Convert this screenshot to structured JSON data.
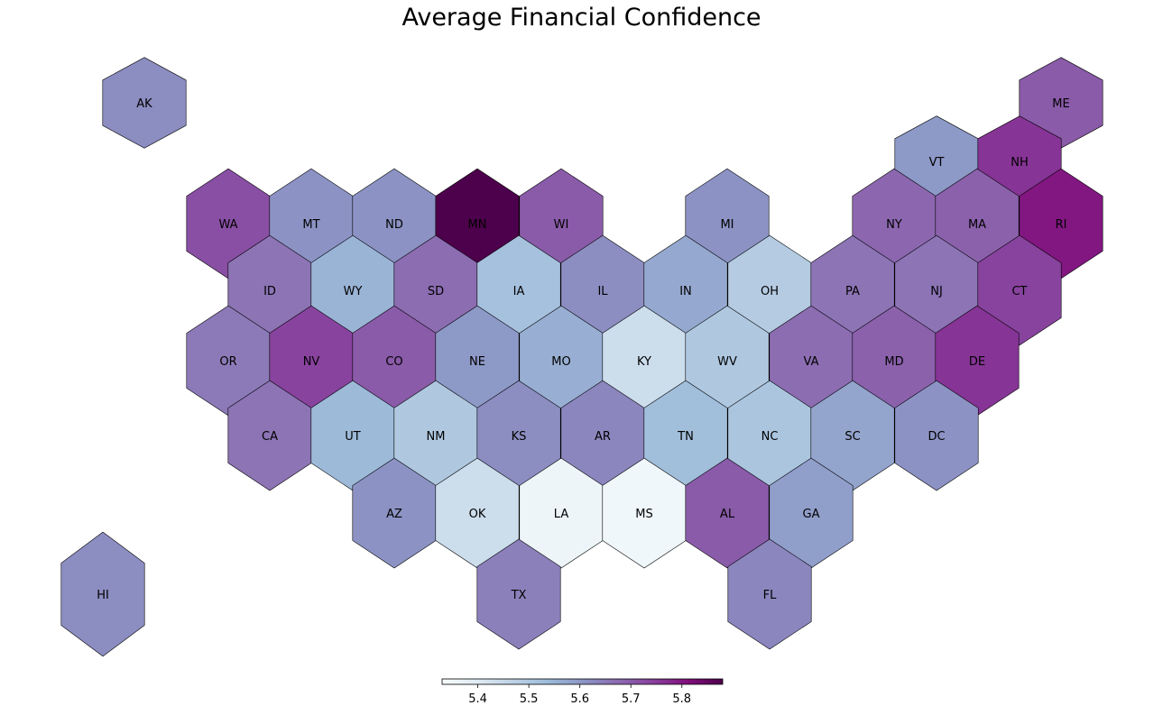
{
  "title": "Average Financial Confidence",
  "colorbar": {
    "min": 5.33,
    "max": 5.88,
    "ticks": [
      "5.4",
      "5.5",
      "5.6",
      "5.7",
      "5.8"
    ],
    "colormap": [
      "#f7fcfd",
      "#e0ecf4",
      "#bfd3e6",
      "#9ebcda",
      "#8c96c6",
      "#8c6bb1",
      "#88419d",
      "#810f7c",
      "#4d004b"
    ]
  },
  "states": [
    {
      "abbr": "AK",
      "value": 5.62
    },
    {
      "abbr": "ME",
      "value": 5.7
    },
    {
      "abbr": "VT",
      "value": 5.6
    },
    {
      "abbr": "NH",
      "value": 5.76
    },
    {
      "abbr": "WA",
      "value": 5.72
    },
    {
      "abbr": "MT",
      "value": 5.61
    },
    {
      "abbr": "ND",
      "value": 5.61
    },
    {
      "abbr": "MN",
      "value": 5.88
    },
    {
      "abbr": "WI",
      "value": 5.7
    },
    {
      "abbr": "MI",
      "value": 5.61
    },
    {
      "abbr": "NY",
      "value": 5.68
    },
    {
      "abbr": "MA",
      "value": 5.69
    },
    {
      "abbr": "RI",
      "value": 5.8
    },
    {
      "abbr": "ID",
      "value": 5.66
    },
    {
      "abbr": "WY",
      "value": 5.55
    },
    {
      "abbr": "SD",
      "value": 5.67
    },
    {
      "abbr": "IA",
      "value": 5.52
    },
    {
      "abbr": "IL",
      "value": 5.62
    },
    {
      "abbr": "IN",
      "value": 5.57
    },
    {
      "abbr": "OH",
      "value": 5.49
    },
    {
      "abbr": "PA",
      "value": 5.66
    },
    {
      "abbr": "NJ",
      "value": 5.66
    },
    {
      "abbr": "CT",
      "value": 5.74
    },
    {
      "abbr": "OR",
      "value": 5.65
    },
    {
      "abbr": "NV",
      "value": 5.74
    },
    {
      "abbr": "CO",
      "value": 5.7
    },
    {
      "abbr": "NE",
      "value": 5.6
    },
    {
      "abbr": "MO",
      "value": 5.56
    },
    {
      "abbr": "KY",
      "value": 5.44
    },
    {
      "abbr": "WV",
      "value": 5.5
    },
    {
      "abbr": "VA",
      "value": 5.67
    },
    {
      "abbr": "MD",
      "value": 5.69
    },
    {
      "abbr": "DE",
      "value": 5.76
    },
    {
      "abbr": "CA",
      "value": 5.66
    },
    {
      "abbr": "UT",
      "value": 5.54
    },
    {
      "abbr": "NM",
      "value": 5.5
    },
    {
      "abbr": "KS",
      "value": 5.62
    },
    {
      "abbr": "AR",
      "value": 5.63
    },
    {
      "abbr": "TN",
      "value": 5.53
    },
    {
      "abbr": "NC",
      "value": 5.51
    },
    {
      "abbr": "SC",
      "value": 5.58
    },
    {
      "abbr": "DC",
      "value": 5.61
    },
    {
      "abbr": "AZ",
      "value": 5.61
    },
    {
      "abbr": "OK",
      "value": 5.44
    },
    {
      "abbr": "LA",
      "value": 5.36
    },
    {
      "abbr": "MS",
      "value": 5.35
    },
    {
      "abbr": "AL",
      "value": 5.7
    },
    {
      "abbr": "GA",
      "value": 5.59
    },
    {
      "abbr": "HI",
      "value": 5.62
    },
    {
      "abbr": "TX",
      "value": 5.64
    },
    {
      "abbr": "FL",
      "value": 5.63
    }
  ]
}
